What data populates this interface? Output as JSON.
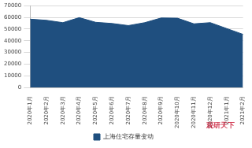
{
  "chart_data": {
    "type": "area",
    "categories": [
      "2020年1月",
      "2020年2月",
      "2020年3月",
      "2020年4月",
      "2020年5月",
      "2020年6月",
      "2020年7月",
      "2020年8月",
      "2020年9月",
      "2020年10月",
      "2020年11月",
      "2020年12月",
      "2021年1月",
      "2021年2月"
    ],
    "series": [
      {
        "name": "上海住宅存量变动",
        "color": "#1f4f7f",
        "values": [
          58500,
          57500,
          55500,
          59800,
          55800,
          54800,
          53000,
          55500,
          59500,
          59300,
          54500,
          55500,
          50500,
          45500
        ]
      }
    ],
    "ylim": [
      0,
      70000
    ],
    "yticks": [
      0,
      10000,
      20000,
      30000,
      40000,
      50000,
      60000,
      70000
    ],
    "grid": true,
    "legend": "bottom",
    "annotations": [
      "观研天下"
    ]
  }
}
